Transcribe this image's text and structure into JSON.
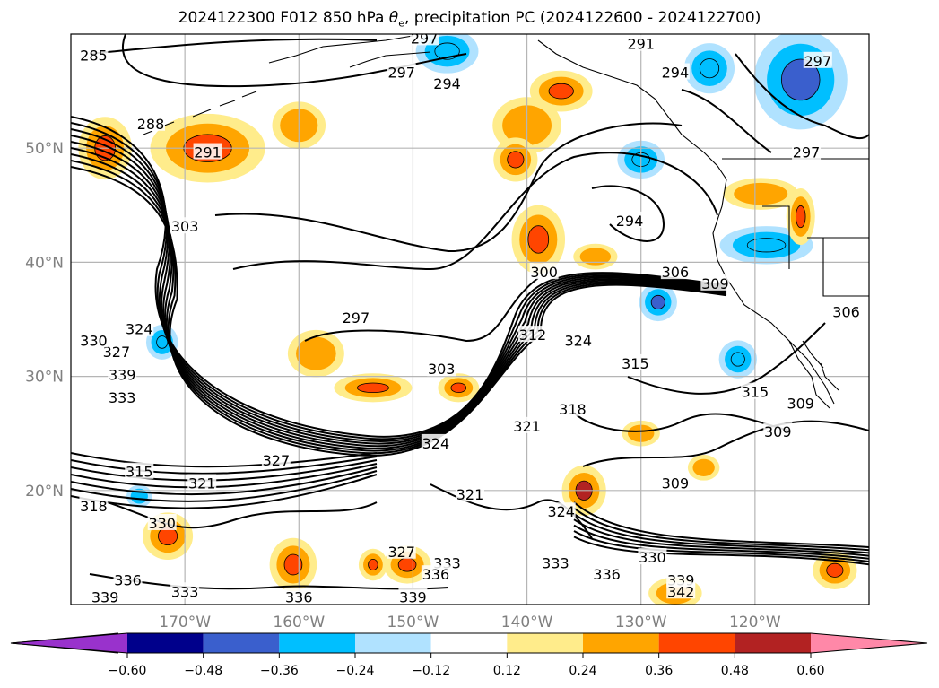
{
  "title": {
    "prefix": "2024122300 F012 850 hPa ",
    "symbol_main": "θ",
    "symbol_sub": "e",
    "suffix": ", precipitation PC (2024122600 - 2024122700)"
  },
  "map": {
    "lon_range": [
      -180,
      -110
    ],
    "lat_range": [
      10,
      60
    ],
    "grid": true,
    "lat_ticks": [
      {
        "value": 50,
        "label": "50°N"
      },
      {
        "value": 40,
        "label": "40°N"
      },
      {
        "value": 30,
        "label": "30°N"
      },
      {
        "value": 20,
        "label": "20°N"
      }
    ],
    "lon_ticks": [
      {
        "value": -170,
        "label": "170°W"
      },
      {
        "value": -160,
        "label": "160°W"
      },
      {
        "value": -150,
        "label": "150°W"
      },
      {
        "value": -140,
        "label": "140°W"
      },
      {
        "value": -130,
        "label": "130°W"
      },
      {
        "value": -120,
        "label": "120°W"
      }
    ],
    "theta_e_labels": [
      {
        "text": "285",
        "lon": -178,
        "lat": 58
      },
      {
        "text": "297",
        "lon": -149,
        "lat": 59.5
      },
      {
        "text": "297",
        "lon": -151,
        "lat": 56.5
      },
      {
        "text": "294",
        "lon": -147,
        "lat": 55.5
      },
      {
        "text": "291",
        "lon": -130,
        "lat": 59
      },
      {
        "text": "294",
        "lon": -127,
        "lat": 56.5
      },
      {
        "text": "297",
        "lon": -114.5,
        "lat": 57.5
      },
      {
        "text": "288",
        "lon": -173,
        "lat": 52
      },
      {
        "text": "291",
        "lon": -168,
        "lat": 49.5
      },
      {
        "text": "297",
        "lon": -115.5,
        "lat": 49.5
      },
      {
        "text": "303",
        "lon": -170,
        "lat": 43
      },
      {
        "text": "294",
        "lon": -131,
        "lat": 43.5
      },
      {
        "text": "300",
        "lon": -138.5,
        "lat": 39
      },
      {
        "text": "306",
        "lon": -127,
        "lat": 39
      },
      {
        "text": "309",
        "lon": -123.5,
        "lat": 38
      },
      {
        "text": "306",
        "lon": -112,
        "lat": 35.5
      },
      {
        "text": "297",
        "lon": -155,
        "lat": 35
      },
      {
        "text": "324",
        "lon": -174,
        "lat": 34
      },
      {
        "text": "327",
        "lon": -176,
        "lat": 32
      },
      {
        "text": "330",
        "lon": -178,
        "lat": 33
      },
      {
        "text": "339",
        "lon": -175.5,
        "lat": 30
      },
      {
        "text": "333",
        "lon": -175.5,
        "lat": 28
      },
      {
        "text": "303",
        "lon": -147.5,
        "lat": 30.5
      },
      {
        "text": "312",
        "lon": -139.5,
        "lat": 33.5
      },
      {
        "text": "324",
        "lon": -135.5,
        "lat": 33
      },
      {
        "text": "315",
        "lon": -130.5,
        "lat": 31
      },
      {
        "text": "318",
        "lon": -136,
        "lat": 27
      },
      {
        "text": "321",
        "lon": -140,
        "lat": 25.5
      },
      {
        "text": "315",
        "lon": -120,
        "lat": 28.5
      },
      {
        "text": "309",
        "lon": -116,
        "lat": 27.5
      },
      {
        "text": "309",
        "lon": -118,
        "lat": 25
      },
      {
        "text": "324",
        "lon": -148,
        "lat": 24
      },
      {
        "text": "327",
        "lon": -162,
        "lat": 22.5
      },
      {
        "text": "315",
        "lon": -174,
        "lat": 21.5
      },
      {
        "text": "321",
        "lon": -168.5,
        "lat": 20.5
      },
      {
        "text": "318",
        "lon": -178,
        "lat": 18.5
      },
      {
        "text": "321",
        "lon": -145,
        "lat": 19.5
      },
      {
        "text": "309",
        "lon": -127,
        "lat": 20.5
      },
      {
        "text": "324",
        "lon": -137,
        "lat": 18
      },
      {
        "text": "330",
        "lon": -172,
        "lat": 17
      },
      {
        "text": "327",
        "lon": -151,
        "lat": 14.5
      },
      {
        "text": "330",
        "lon": -129,
        "lat": 14
      },
      {
        "text": "333",
        "lon": -137.5,
        "lat": 13.5
      },
      {
        "text": "333",
        "lon": -147,
        "lat": 13.5
      },
      {
        "text": "336",
        "lon": -148,
        "lat": 12.5
      },
      {
        "text": "336",
        "lon": -133,
        "lat": 12.5
      },
      {
        "text": "339",
        "lon": -126.5,
        "lat": 12
      },
      {
        "text": "336",
        "lon": -175,
        "lat": 12
      },
      {
        "text": "333",
        "lon": -170,
        "lat": 11
      },
      {
        "text": "336",
        "lon": -160,
        "lat": 10.5
      },
      {
        "text": "339",
        "lon": -150,
        "lat": 10.5
      },
      {
        "text": "342",
        "lon": -126.5,
        "lat": 11
      },
      {
        "text": "339",
        "lon": -177,
        "lat": 10.5
      }
    ],
    "precip_blobs": [
      {
        "lon": -147,
        "lat": 58.5,
        "rlon": 1.8,
        "rlat": 1.2,
        "level": -0.36
      },
      {
        "lon": -168,
        "lat": 50,
        "rlon": 3.5,
        "rlat": 2,
        "level": 0.36
      },
      {
        "lon": -177,
        "lat": 50,
        "rlon": 1.5,
        "rlat": 1.8,
        "level": 0.36
      },
      {
        "lon": -160,
        "lat": 52,
        "rlon": 1.5,
        "rlat": 1.3,
        "level": 0.24
      },
      {
        "lon": -140,
        "lat": 52,
        "rlon": 2,
        "rlat": 1.6,
        "level": 0.24
      },
      {
        "lon": -141,
        "lat": 49,
        "rlon": 1.2,
        "rlat": 1.2,
        "level": 0.36
      },
      {
        "lon": -137,
        "lat": 55,
        "rlon": 1.8,
        "rlat": 1.1,
        "level": 0.36
      },
      {
        "lon": -124,
        "lat": 57,
        "rlon": 1.4,
        "rlat": 1.4,
        "level": -0.36
      },
      {
        "lon": -116,
        "lat": 56,
        "rlon": 2.8,
        "rlat": 3,
        "level": -0.48
      },
      {
        "lon": -130,
        "lat": 49,
        "rlon": 1.3,
        "rlat": 1,
        "level": -0.36
      },
      {
        "lon": -139,
        "lat": 42,
        "rlon": 1.5,
        "rlat": 2,
        "level": 0.36
      },
      {
        "lon": -119.5,
        "lat": 46,
        "rlon": 2.2,
        "rlat": 0.8,
        "level": 0.24
      },
      {
        "lon": -119,
        "lat": 41.5,
        "rlon": 2.8,
        "rlat": 1,
        "level": -0.36
      },
      {
        "lon": -128.5,
        "lat": 36.5,
        "rlon": 1,
        "rlat": 1,
        "level": -0.48
      },
      {
        "lon": -172,
        "lat": 33,
        "rlon": 0.8,
        "rlat": 0.9,
        "level": -0.36
      },
      {
        "lon": -158.5,
        "lat": 32,
        "rlon": 1.6,
        "rlat": 1.3,
        "level": 0.24
      },
      {
        "lon": -153.5,
        "lat": 29,
        "rlon": 2.3,
        "rlat": 0.7,
        "level": 0.36
      },
      {
        "lon": -146,
        "lat": 29,
        "rlon": 1.1,
        "rlat": 0.7,
        "level": 0.36
      },
      {
        "lon": -121.5,
        "lat": 31.5,
        "rlon": 1,
        "rlat": 1,
        "level": -0.36
      },
      {
        "lon": -116,
        "lat": 44,
        "rlon": 0.7,
        "rlat": 1.6,
        "level": 0.36
      },
      {
        "lon": -135,
        "lat": 20,
        "rlon": 1.2,
        "rlat": 1.4,
        "level": 0.48
      },
      {
        "lon": -171.5,
        "lat": 16,
        "rlon": 1.4,
        "rlat": 1.3,
        "level": 0.36
      },
      {
        "lon": -160.5,
        "lat": 13.5,
        "rlon": 1.3,
        "rlat": 1.5,
        "level": 0.36
      },
      {
        "lon": -150.5,
        "lat": 13.5,
        "rlon": 1.3,
        "rlat": 1,
        "level": 0.36
      },
      {
        "lon": -153.5,
        "lat": 13.5,
        "rlon": 0.7,
        "rlat": 0.8,
        "level": 0.36
      },
      {
        "lon": -130,
        "lat": 25,
        "rlon": 1,
        "rlat": 0.6,
        "level": 0.24
      },
      {
        "lon": -124.5,
        "lat": 22,
        "rlon": 0.8,
        "rlat": 0.6,
        "level": 0.24
      },
      {
        "lon": -134,
        "lat": 40.5,
        "rlon": 1.2,
        "rlat": 0.6,
        "level": 0.24
      },
      {
        "lon": -113,
        "lat": 13,
        "rlon": 1.2,
        "rlat": 1,
        "level": 0.36
      },
      {
        "lon": -174,
        "lat": 19.5,
        "rlon": 0.6,
        "rlat": 0.5,
        "level": -0.24
      },
      {
        "lon": -127,
        "lat": 11,
        "rlon": 1.5,
        "rlat": 0.8,
        "level": 0.24
      }
    ]
  },
  "colorbar": {
    "colors": [
      "#9932cc",
      "#00008b",
      "#3a5fcd",
      "#00bfff",
      "#b0e2ff",
      "#ffffff",
      "#ffec8b",
      "#ffa500",
      "#ff4500",
      "#b22222",
      "#ff88a8"
    ],
    "under_color": "#9932cc",
    "over_color": "#ff88a8",
    "levels": [
      -0.6,
      -0.48,
      -0.36,
      -0.24,
      -0.12,
      0.12,
      0.24,
      0.36,
      0.48,
      0.6
    ],
    "labels": [
      "−0.60",
      "−0.48",
      "−0.36",
      "−0.24",
      "−0.12",
      "0.12",
      "0.24",
      "0.36",
      "0.48",
      "0.60"
    ]
  }
}
